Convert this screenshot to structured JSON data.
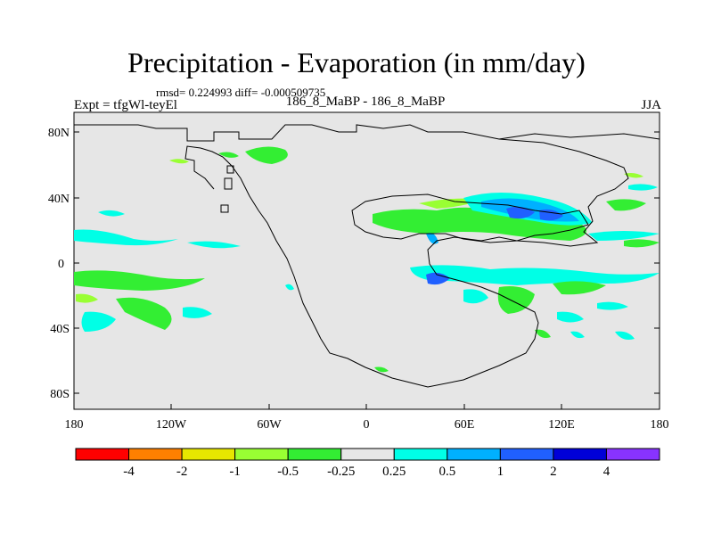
{
  "title": "Precipitation - Evaporation (in mm/day)",
  "stats_line": "rmsd= 0.224993 diff= -0.000509735",
  "experiment": "Expt = tfgWl-teyEl",
  "center_label": "186_8_MaBP - 186_8_MaBP",
  "season": "JJA",
  "axes": {
    "lat_labels": [
      "80N",
      "40N",
      "0",
      "40S",
      "80S"
    ],
    "lon_labels": [
      "180",
      "120W",
      "60W",
      "0",
      "60E",
      "120E",
      "180"
    ]
  },
  "colorbar": {
    "colors": [
      "#ff0000",
      "#ff8000",
      "#e6e600",
      "#99ff33",
      "#33ee33",
      "#e6e6e6",
      "#00ffe6",
      "#00b0ff",
      "#2060ff",
      "#0000d8",
      "#8833ff"
    ],
    "labels": [
      "-4",
      "-2",
      "-1",
      "-0.5",
      "-0.25",
      "0.25",
      "0.5",
      "1",
      "2",
      "4"
    ]
  },
  "map": {
    "background": "#e6e6e6",
    "outline": "#000000"
  }
}
